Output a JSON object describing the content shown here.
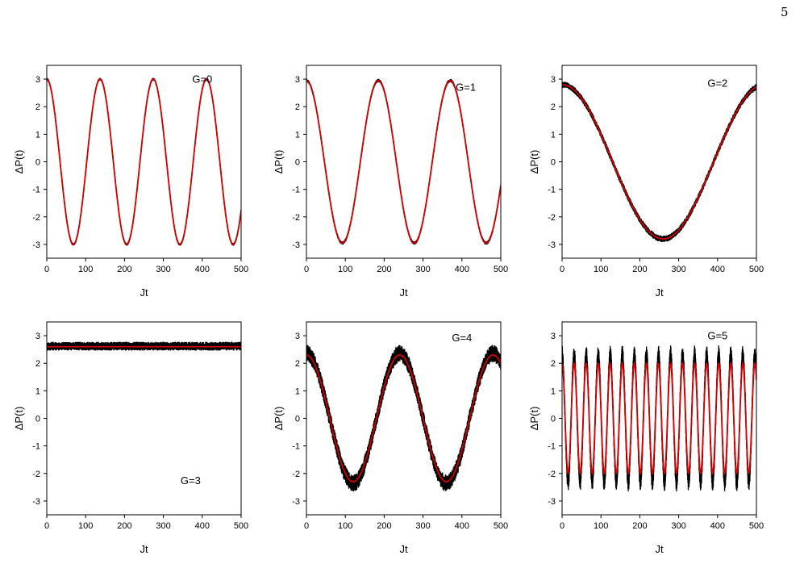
{
  "page": {
    "number": "5"
  },
  "colors": {
    "raw": "#000000",
    "fit": "#d40000",
    "axis": "#000000"
  },
  "chart_data": [
    {
      "type": "line",
      "panel_label": "G=0",
      "xlabel": "Jt",
      "ylabel": "ΔP(t)",
      "xlim": [
        0,
        500
      ],
      "ylim": [
        -3.5,
        3.5
      ],
      "xticks": [
        "0",
        "100",
        "200",
        "300",
        "400",
        "500"
      ],
      "yticks": [
        "-3",
        "-2",
        "-1",
        "0",
        "1",
        "2",
        "3"
      ],
      "grid": false,
      "series": [
        {
          "role": "raw",
          "model": "offset+amplitude*cos(2*pi*Jt/period)",
          "offset": 0,
          "amplitude": 3.0,
          "period": 137,
          "jitter": 0.05
        },
        {
          "role": "fit",
          "model": "offset+amplitude*cos(2*pi*Jt/period)",
          "offset": 0,
          "amplitude": 3.0,
          "period": 137
        }
      ]
    },
    {
      "type": "line",
      "panel_label": "G=1",
      "xlabel": "Jt",
      "ylabel": "ΔP(t)",
      "xlim": [
        0,
        500
      ],
      "ylim": [
        -3.5,
        3.5
      ],
      "xticks": [
        "0",
        "100",
        "200",
        "300",
        "400",
        "500"
      ],
      "yticks": [
        "-3",
        "-2",
        "-1",
        "0",
        "1",
        "2",
        "3"
      ],
      "grid": false,
      "series": [
        {
          "role": "raw",
          "model": "offset+amplitude*cos(2*pi*Jt/period)",
          "offset": 0,
          "amplitude": 2.95,
          "period": 185,
          "jitter": 0.06
        },
        {
          "role": "fit",
          "model": "offset+amplitude*cos(2*pi*Jt/period)",
          "offset": 0,
          "amplitude": 2.95,
          "period": 185
        }
      ]
    },
    {
      "type": "line",
      "panel_label": "G=2",
      "xlabel": "Jt",
      "ylabel": "ΔP(t)",
      "xlim": [
        0,
        500
      ],
      "ylim": [
        -3.5,
        3.5
      ],
      "xticks": [
        "0",
        "100",
        "200",
        "300",
        "400",
        "500"
      ],
      "yticks": [
        "-3",
        "-2",
        "-1",
        "0",
        "1",
        "2",
        "3"
      ],
      "grid": false,
      "series": [
        {
          "role": "raw",
          "model": "offset+amplitude*cos(2*pi*Jt/period)",
          "offset": 0,
          "amplitude": 2.8,
          "period": 520,
          "jitter": 0.12
        },
        {
          "role": "fit",
          "model": "offset+amplitude*cos(2*pi*Jt/period)",
          "offset": 0,
          "amplitude": 2.8,
          "period": 520
        }
      ]
    },
    {
      "type": "line",
      "panel_label": "G=3",
      "xlabel": "Jt",
      "ylabel": "ΔP(t)",
      "xlim": [
        0,
        500
      ],
      "ylim": [
        -3.5,
        3.5
      ],
      "xticks": [
        "0",
        "100",
        "200",
        "300",
        "400",
        "500"
      ],
      "yticks": [
        "-3",
        "-2",
        "-1",
        "0",
        "1",
        "2",
        "3"
      ],
      "grid": false,
      "series": [
        {
          "role": "raw",
          "model": "offset+amplitude*cos(2*pi*Jt/period)",
          "offset": 2.62,
          "amplitude": 0,
          "period": 100,
          "jitter": 0.16
        },
        {
          "role": "fit",
          "model": "offset+amplitude*cos(2*pi*Jt/period)",
          "offset": 2.6,
          "amplitude": 0,
          "period": 100
        }
      ]
    },
    {
      "type": "line",
      "panel_label": "G=4",
      "xlabel": "Jt",
      "ylabel": "ΔP(t)",
      "xlim": [
        0,
        500
      ],
      "ylim": [
        -3.5,
        3.5
      ],
      "xticks": [
        "0",
        "100",
        "200",
        "300",
        "400",
        "500"
      ],
      "yticks": [
        "-3",
        "-2",
        "-1",
        "0",
        "1",
        "2",
        "3"
      ],
      "grid": false,
      "series": [
        {
          "role": "raw",
          "model": "offset+amplitude*cos(2*pi*Jt/period)",
          "offset": 0,
          "amplitude": 2.35,
          "period": 240,
          "jitter": 0.32
        },
        {
          "role": "fit",
          "model": "offset+amplitude*cos(2*pi*Jt/period)",
          "offset": 0,
          "amplitude": 2.3,
          "period": 240
        }
      ]
    },
    {
      "type": "line",
      "panel_label": "G=5",
      "xlabel": "Jt",
      "ylabel": "ΔP(t)",
      "xlim": [
        0,
        500
      ],
      "ylim": [
        -3.5,
        3.5
      ],
      "xticks": [
        "0",
        "100",
        "200",
        "300",
        "400",
        "500"
      ],
      "yticks": [
        "-3",
        "-2",
        "-1",
        "0",
        "1",
        "2",
        "3"
      ],
      "grid": false,
      "series": [
        {
          "role": "raw",
          "model": "offset+amplitude*cos(2*pi*Jt/period)",
          "offset": 0,
          "amplitude": 2.3,
          "period": 31,
          "jitter": 0.35
        },
        {
          "role": "fit",
          "model": "offset+amplitude*cos(2*pi*Jt/period)",
          "offset": 0,
          "amplitude": 2.0,
          "period": 31
        }
      ]
    }
  ]
}
